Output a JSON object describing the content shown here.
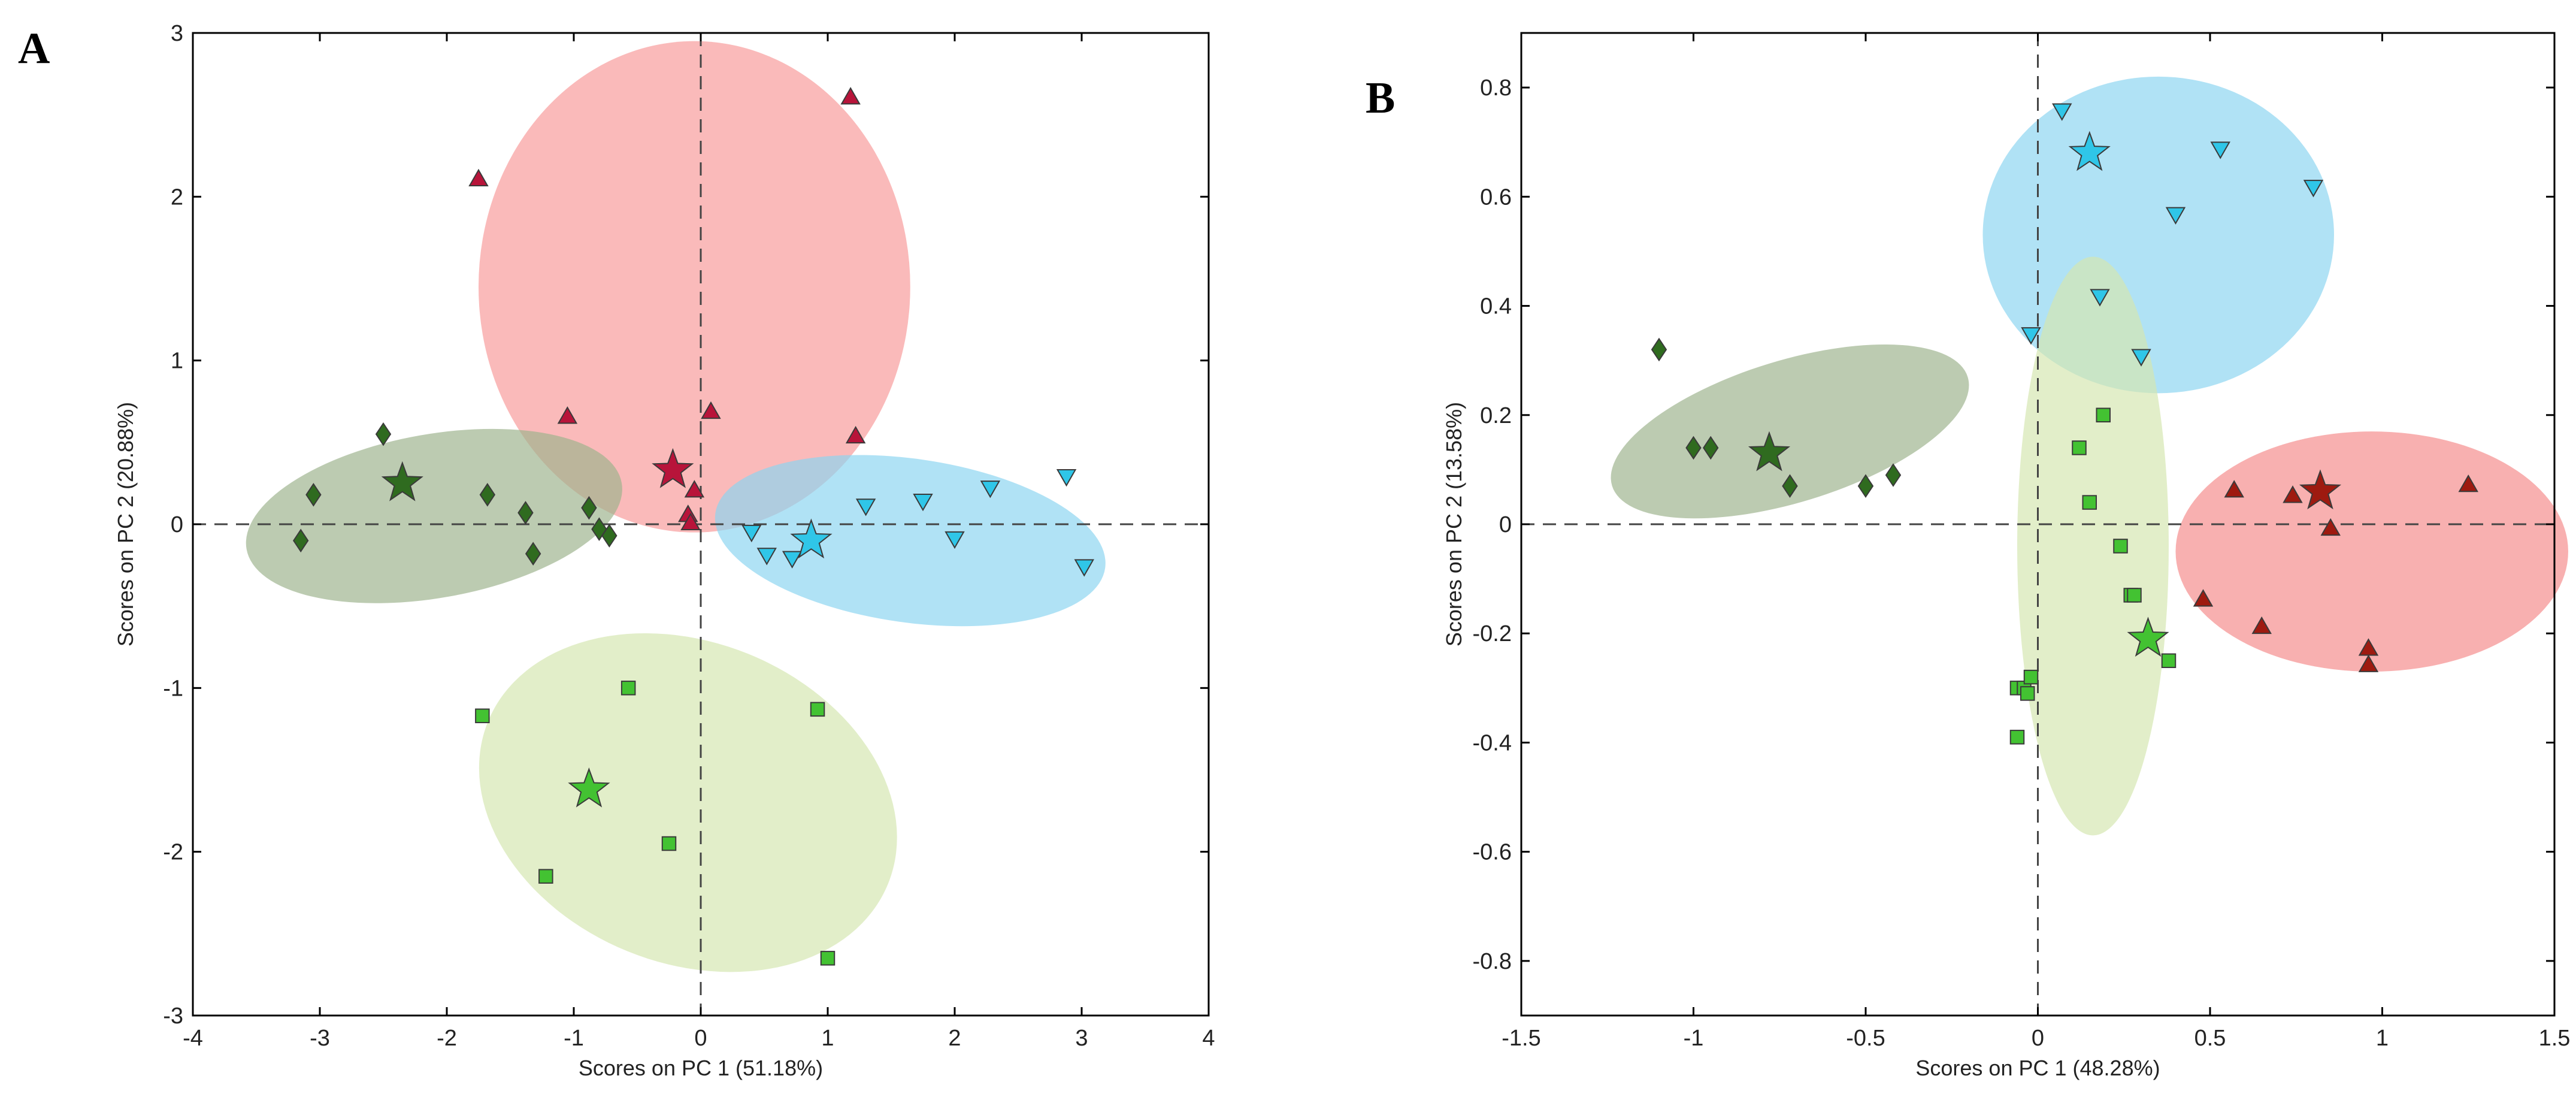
{
  "chart_data": [
    {
      "panel": "A",
      "type": "scatter",
      "xlabel": "Scores on PC 1 (51.18%)",
      "ylabel": "Scores on PC 2 (20.88%)",
      "xlim": [
        -4,
        4
      ],
      "ylim": [
        -3,
        3
      ],
      "xticks": [
        "-4",
        "-3",
        "-2",
        "-1",
        "0",
        "1",
        "2",
        "3",
        "4"
      ],
      "yticks": [
        "-3",
        "-2",
        "-1",
        "0",
        "1",
        "2",
        "3"
      ],
      "groups": [
        {
          "name": "red-triangles",
          "marker": "triangle-up",
          "color": "#b8143a",
          "ellipse_color": "#f89a9a",
          "ellipse": {
            "cx": -0.05,
            "cy": 1.45,
            "rx": 1.7,
            "ry": 1.5,
            "angle": 0
          },
          "centroid": [
            -0.22,
            0.33
          ],
          "points": [
            [
              -1.75,
              2.1
            ],
            [
              1.18,
              2.6
            ],
            [
              -1.05,
              0.65
            ],
            [
              0.08,
              0.68
            ],
            [
              1.22,
              0.53
            ],
            [
              -0.05,
              0.2
            ],
            [
              -0.1,
              0.05
            ],
            [
              -0.08,
              0.0
            ]
          ]
        },
        {
          "name": "dark-green-diamonds",
          "marker": "diamond",
          "color": "#2f6b1f",
          "ellipse_color": "#9cb38c",
          "ellipse": {
            "cx": -2.1,
            "cy": 0.05,
            "rx": 1.5,
            "ry": 0.5,
            "angle": -10
          },
          "centroid": [
            -2.35,
            0.25
          ],
          "points": [
            [
              -2.5,
              0.55
            ],
            [
              -3.05,
              0.18
            ],
            [
              -3.15,
              -0.1
            ],
            [
              -1.68,
              0.18
            ],
            [
              -1.38,
              0.07
            ],
            [
              -1.32,
              -0.18
            ],
            [
              -0.88,
              0.1
            ],
            [
              -0.8,
              -0.03
            ],
            [
              -0.72,
              -0.07
            ]
          ]
        },
        {
          "name": "cyan-triangles-down",
          "marker": "triangle-down",
          "color": "#2fc6e8",
          "ellipse_color": "#8ad4f0",
          "ellipse": {
            "cx": 1.65,
            "cy": -0.1,
            "rx": 1.55,
            "ry": 0.5,
            "angle": 8
          },
          "centroid": [
            0.87,
            -0.1
          ],
          "points": [
            [
              0.4,
              -0.04
            ],
            [
              0.52,
              -0.18
            ],
            [
              0.72,
              -0.2
            ],
            [
              1.3,
              0.12
            ],
            [
              1.75,
              0.15
            ],
            [
              2.28,
              0.23
            ],
            [
              2.88,
              0.3
            ],
            [
              2.0,
              -0.08
            ],
            [
              3.02,
              -0.25
            ]
          ]
        },
        {
          "name": "light-green-squares",
          "marker": "square",
          "color": "#43c232",
          "ellipse_color": "#d4e6b0",
          "ellipse": {
            "cx": -0.1,
            "cy": -1.7,
            "rx": 1.7,
            "ry": 0.98,
            "angle": 22
          },
          "centroid": [
            -0.88,
            -1.62
          ],
          "points": [
            [
              -1.72,
              -1.17
            ],
            [
              -0.57,
              -1.0
            ],
            [
              0.92,
              -1.13
            ],
            [
              -1.22,
              -2.15
            ],
            [
              -0.25,
              -1.95
            ],
            [
              1.0,
              -2.65
            ]
          ]
        }
      ]
    },
    {
      "panel": "B",
      "type": "scatter",
      "xlabel": "Scores on PC 1 (48.28%)",
      "ylabel": "Scores on PC 2 (13.58%)",
      "xlim": [
        -1.5,
        1.5
      ],
      "ylim": [
        -0.9,
        0.9
      ],
      "xticks": [
        "-1.5",
        "-1",
        "-0.5",
        "0",
        "0.5",
        "1",
        "1.5"
      ],
      "yticks": [
        "-0.8",
        "-0.6",
        "-0.4",
        "-0.2",
        "0",
        "0.2",
        "0.4",
        "0.6",
        "0.8"
      ],
      "groups": [
        {
          "name": "cyan-triangles-down",
          "marker": "triangle-down",
          "color": "#2fc6e8",
          "ellipse_color": "#8ad4f0",
          "ellipse": {
            "cx": 0.35,
            "cy": 0.53,
            "rx": 0.51,
            "ry": 0.29,
            "angle": 0
          },
          "centroid": [
            0.15,
            0.68
          ],
          "points": [
            [
              0.07,
              0.76
            ],
            [
              0.53,
              0.69
            ],
            [
              0.8,
              0.62
            ],
            [
              0.4,
              0.57
            ],
            [
              0.18,
              0.42
            ],
            [
              -0.02,
              0.35
            ],
            [
              0.3,
              0.31
            ]
          ]
        },
        {
          "name": "dark-green-diamonds",
          "marker": "diamond",
          "color": "#2f6b1f",
          "ellipse_color": "#9cb38c",
          "ellipse": {
            "cx": -0.72,
            "cy": 0.17,
            "rx": 0.54,
            "ry": 0.13,
            "angle": -17
          },
          "centroid": [
            -0.78,
            0.13
          ],
          "points": [
            [
              -1.1,
              0.32
            ],
            [
              -1.0,
              0.14
            ],
            [
              -0.95,
              0.14
            ],
            [
              -0.72,
              0.07
            ],
            [
              -0.5,
              0.07
            ],
            [
              -0.42,
              0.09
            ]
          ]
        },
        {
          "name": "light-green-squares",
          "marker": "square",
          "color": "#43c232",
          "ellipse_color": "#d4e6b0",
          "ellipse": {
            "cx": 0.16,
            "cy": -0.04,
            "rx": 0.22,
            "ry": 0.53,
            "angle": 0
          },
          "centroid": [
            0.32,
            -0.21
          ],
          "points": [
            [
              0.19,
              0.2
            ],
            [
              0.12,
              0.14
            ],
            [
              0.15,
              0.04
            ],
            [
              0.24,
              -0.04
            ],
            [
              0.27,
              -0.13
            ],
            [
              0.28,
              -0.13
            ],
            [
              0.38,
              -0.25
            ],
            [
              -0.06,
              -0.3
            ],
            [
              -0.04,
              -0.3
            ],
            [
              -0.02,
              -0.28
            ],
            [
              -0.03,
              -0.31
            ],
            [
              -0.06,
              -0.39
            ]
          ]
        },
        {
          "name": "red-triangles",
          "marker": "triangle-up",
          "color": "#9e1a10",
          "ellipse_color": "#f48a8a",
          "ellipse": {
            "cx": 0.97,
            "cy": -0.05,
            "rx": 0.57,
            "ry": 0.22,
            "angle": 0
          },
          "centroid": [
            0.82,
            0.06
          ],
          "points": [
            [
              0.57,
              0.06
            ],
            [
              0.74,
              0.05
            ],
            [
              1.25,
              0.07
            ],
            [
              0.85,
              -0.01
            ],
            [
              0.48,
              -0.14
            ],
            [
              0.65,
              -0.19
            ],
            [
              0.96,
              -0.23
            ],
            [
              0.96,
              -0.26
            ]
          ]
        }
      ]
    }
  ]
}
